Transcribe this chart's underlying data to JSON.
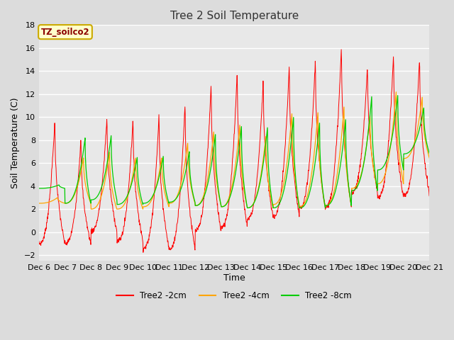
{
  "title": "Tree 2 Soil Temperature",
  "xlabel": "Time",
  "ylabel": "Soil Temperature (C)",
  "ylim": [
    -2.5,
    18
  ],
  "yticks": [
    -2,
    0,
    2,
    4,
    6,
    8,
    10,
    12,
    14,
    16,
    18
  ],
  "line_labels": [
    "Tree2 -2cm",
    "Tree2 -4cm",
    "Tree2 -8cm"
  ],
  "line_colors": [
    "#ff0000",
    "#ffa500",
    "#00cc00"
  ],
  "background_color": "#dcdcdc",
  "plot_bg_color": "#e8e8e8",
  "xtick_labels": [
    "Dec 6",
    "Dec 7",
    "Dec 8",
    "Dec 9",
    "Dec 10",
    "Dec 11",
    "Dec 12",
    "Dec 13",
    "Dec 14",
    "Dec 15",
    "Dec 16",
    "Dec 17",
    "Dec 18",
    "Dec 19",
    "Dec 20",
    "Dec 21"
  ],
  "annotation_text": "TZ_soilco2",
  "annotation_color": "#8B0000",
  "annotation_bg": "#ffffcc",
  "annotation_edge": "#ccaa00"
}
